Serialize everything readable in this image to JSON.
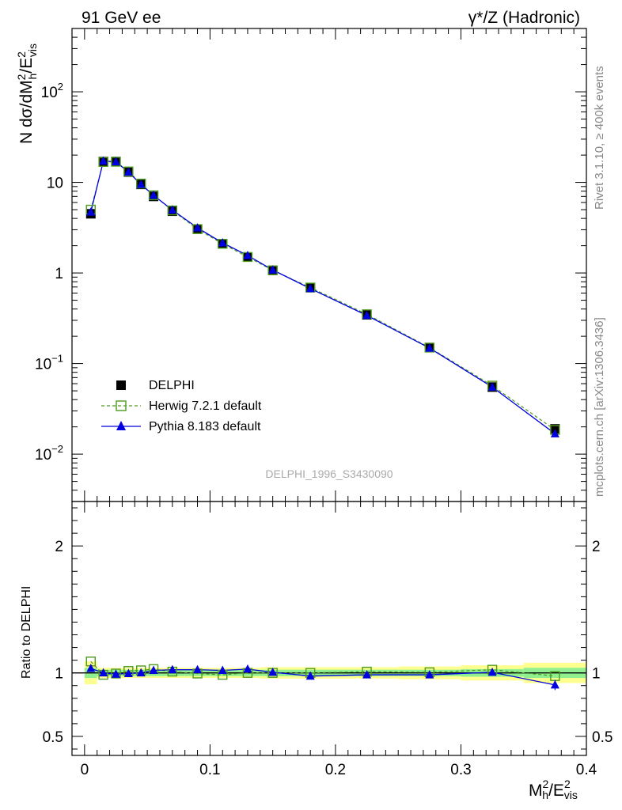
{
  "header": {
    "energy_label": "91 GeV ee",
    "process_label": "γ*/Z (Hadronic)"
  },
  "side_text": {
    "rivet": "Rivet 3.1.10, ≥ 400k events",
    "mcplots": "mcplots.cern.ch [arXiv:1306.3436]"
  },
  "analysis_id": "DELPHI_1996_S3430090",
  "legend": {
    "data": "DELPHI",
    "herwig": "Herwig 7.2.1 default",
    "pythia": "Pythia 8.183 default"
  },
  "colors": {
    "data": "#000000",
    "herwig": "#4d9a1e",
    "pythia": "#0000e0",
    "band_inner": "#90f090",
    "band_outer": "#ffff90"
  },
  "chart_data": [
    {
      "type": "line",
      "panel": "main",
      "ylabel": "N dσ/dM²h/E²vis",
      "yscale": "log",
      "ylim": [
        0.003,
        500
      ],
      "xlim": [
        -0.01,
        0.4
      ],
      "y_ticks": [
        {
          "value": 100,
          "base": "10",
          "exp": "2"
        },
        {
          "value": 10,
          "base": "10",
          "exp": ""
        },
        {
          "value": 1,
          "base": "1",
          "exp": ""
        },
        {
          "value": 0.1,
          "base": "10",
          "exp": "−1"
        },
        {
          "value": 0.01,
          "base": "10",
          "exp": "−2"
        }
      ],
      "x": [
        0.005,
        0.015,
        0.025,
        0.035,
        0.045,
        0.055,
        0.07,
        0.09,
        0.11,
        0.13,
        0.15,
        0.18,
        0.225,
        0.275,
        0.325,
        0.375
      ],
      "series": [
        {
          "name": "DELPHI",
          "values": [
            4.5,
            17.0,
            17.0,
            13.0,
            9.5,
            7.0,
            4.8,
            3.05,
            2.1,
            1.5,
            1.07,
            0.69,
            0.345,
            0.15,
            0.055,
            0.019
          ]
        },
        {
          "name": "Herwig 7.2.1 default",
          "values": [
            5.0,
            16.8,
            16.9,
            13.2,
            9.7,
            7.2,
            4.9,
            3.05,
            2.1,
            1.5,
            1.07,
            0.69,
            0.35,
            0.15,
            0.057,
            0.0185
          ]
        },
        {
          "name": "Pythia 8.183 default",
          "values": [
            4.7,
            17.2,
            16.9,
            13.0,
            9.5,
            7.2,
            4.95,
            3.15,
            2.15,
            1.56,
            1.08,
            0.672,
            0.34,
            0.148,
            0.055,
            0.0168
          ]
        }
      ]
    },
    {
      "type": "line",
      "panel": "ratio",
      "xlabel": "M²h/E²vis",
      "ylabel": "Ratio to DELPHI",
      "ylim": [
        0.35,
        2.35
      ],
      "xlim": [
        -0.01,
        0.4
      ],
      "x_ticks": [
        0,
        0.1,
        0.2,
        0.3,
        0.4
      ],
      "x_tick_labels": [
        "0",
        "0.1",
        "0.2",
        "0.3",
        "0.4"
      ],
      "y_ticks": [
        0.5,
        1,
        2
      ],
      "y_tick_labels": [
        "0.5",
        "1",
        "2"
      ],
      "bins": [
        {
          "lo": 0.0,
          "hi": 0.01,
          "inner": [
            0.96,
            1.04
          ],
          "outer": [
            0.91,
            1.09
          ]
        },
        {
          "lo": 0.01,
          "hi": 0.02,
          "inner": [
            0.975,
            1.025
          ],
          "outer": [
            0.96,
            1.04
          ]
        },
        {
          "lo": 0.02,
          "hi": 0.03,
          "inner": [
            0.975,
            1.025
          ],
          "outer": [
            0.96,
            1.04
          ]
        },
        {
          "lo": 0.03,
          "hi": 0.04,
          "inner": [
            0.975,
            1.025
          ],
          "outer": [
            0.96,
            1.04
          ]
        },
        {
          "lo": 0.04,
          "hi": 0.05,
          "inner": [
            0.975,
            1.025
          ],
          "outer": [
            0.96,
            1.04
          ]
        },
        {
          "lo": 0.05,
          "hi": 0.06,
          "inner": [
            0.975,
            1.025
          ],
          "outer": [
            0.96,
            1.04
          ]
        },
        {
          "lo": 0.06,
          "hi": 0.08,
          "inner": [
            0.975,
            1.025
          ],
          "outer": [
            0.96,
            1.04
          ]
        },
        {
          "lo": 0.08,
          "hi": 0.1,
          "inner": [
            0.975,
            1.025
          ],
          "outer": [
            0.96,
            1.04
          ]
        },
        {
          "lo": 0.1,
          "hi": 0.12,
          "inner": [
            0.975,
            1.025
          ],
          "outer": [
            0.96,
            1.04
          ]
        },
        {
          "lo": 0.12,
          "hi": 0.14,
          "inner": [
            0.975,
            1.025
          ],
          "outer": [
            0.96,
            1.04
          ]
        },
        {
          "lo": 0.14,
          "hi": 0.16,
          "inner": [
            0.975,
            1.025
          ],
          "outer": [
            0.955,
            1.045
          ]
        },
        {
          "lo": 0.16,
          "hi": 0.2,
          "inner": [
            0.975,
            1.025
          ],
          "outer": [
            0.955,
            1.045
          ]
        },
        {
          "lo": 0.2,
          "hi": 0.25,
          "inner": [
            0.975,
            1.025
          ],
          "outer": [
            0.955,
            1.045
          ]
        },
        {
          "lo": 0.25,
          "hi": 0.3,
          "inner": [
            0.975,
            1.025
          ],
          "outer": [
            0.95,
            1.05
          ]
        },
        {
          "lo": 0.3,
          "hi": 0.35,
          "inner": [
            0.97,
            1.03
          ],
          "outer": [
            0.94,
            1.06
          ]
        },
        {
          "lo": 0.35,
          "hi": 0.4,
          "inner": [
            0.96,
            1.04
          ],
          "outer": [
            0.92,
            1.08
          ]
        }
      ],
      "x": [
        0.005,
        0.015,
        0.025,
        0.035,
        0.045,
        0.055,
        0.07,
        0.09,
        0.11,
        0.13,
        0.15,
        0.18,
        0.225,
        0.275,
        0.325,
        0.375
      ],
      "series": [
        {
          "name": "Herwig 7.2.1 default",
          "values": [
            1.09,
            0.985,
            0.995,
            1.015,
            1.02,
            1.03,
            1.01,
            0.995,
            0.985,
            1.0,
            1.0,
            1.0,
            1.01,
            1.005,
            1.025,
            0.975
          ]
        },
        {
          "name": "Pythia 8.183 default",
          "values": [
            1.035,
            1.0,
            0.99,
            0.995,
            1.0,
            1.02,
            1.025,
            1.025,
            1.02,
            1.03,
            1.005,
            0.975,
            0.985,
            0.985,
            1.005,
            0.905
          ],
          "error_last": 0.04
        }
      ]
    }
  ]
}
